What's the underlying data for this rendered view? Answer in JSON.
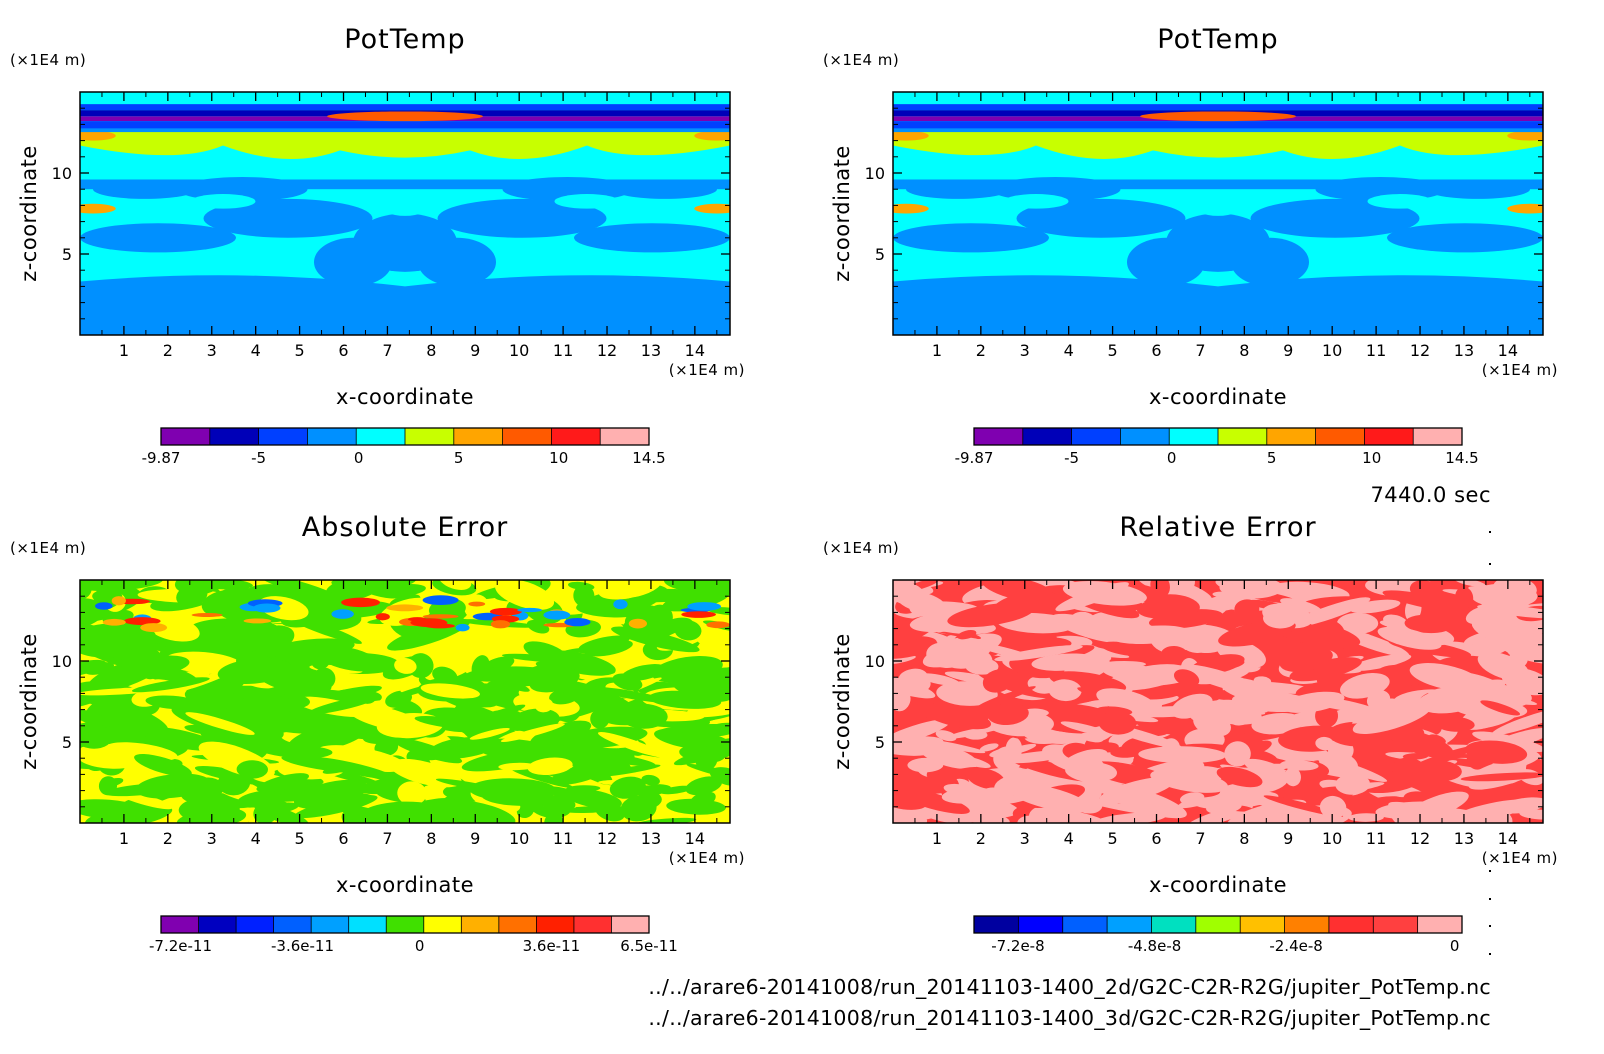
{
  "chart_data": [
    {
      "id": "pottemp-2d",
      "type": "heatmap",
      "title": "PotTemp",
      "xlabel": "x-coordinate",
      "ylabel": "z-coordinate",
      "x_unit": "(×1E4 m)",
      "y_unit": "(×1E4 m)",
      "xlim": [
        0,
        14.8
      ],
      "ylim": [
        0,
        15
      ],
      "xticks": [
        "1",
        "2",
        "3",
        "4",
        "5",
        "6",
        "7",
        "8",
        "9",
        "10",
        "11",
        "12",
        "13",
        "14"
      ],
      "yticks": [
        "5",
        "10"
      ],
      "pattern": "pottemp",
      "colorbar": {
        "colors": [
          "#7f00b0",
          "#0000b8",
          "#0040ff",
          "#0090ff",
          "#00ffff",
          "#c8ff00",
          "#ffa500",
          "#ff5a00",
          "#ff1a1a",
          "#ffb0b0"
        ],
        "range": [
          -9.87,
          14.5
        ],
        "labels": [
          {
            "text": "-9.87",
            "pos": 0
          },
          {
            "text": "-5",
            "pos": 0.2
          },
          {
            "text": "0",
            "pos": 0.405
          },
          {
            "text": "5",
            "pos": 0.61
          },
          {
            "text": "10",
            "pos": 0.815
          },
          {
            "text": "14.5",
            "pos": 1
          }
        ]
      }
    },
    {
      "id": "pottemp-3d",
      "type": "heatmap",
      "title": "PotTemp",
      "xlabel": "x-coordinate",
      "ylabel": "z-coordinate",
      "x_unit": "(×1E4 m)",
      "y_unit": "(×1E4 m)",
      "xlim": [
        0,
        14.8
      ],
      "ylim": [
        0,
        15
      ],
      "xticks": [
        "1",
        "2",
        "3",
        "4",
        "5",
        "6",
        "7",
        "8",
        "9",
        "10",
        "11",
        "12",
        "13",
        "14"
      ],
      "yticks": [
        "5",
        "10"
      ],
      "pattern": "pottemp",
      "colorbar": {
        "colors": [
          "#7f00b0",
          "#0000b8",
          "#0040ff",
          "#0090ff",
          "#00ffff",
          "#c8ff00",
          "#ffa500",
          "#ff5a00",
          "#ff1a1a",
          "#ffb0b0"
        ],
        "range": [
          -9.87,
          14.5
        ],
        "labels": [
          {
            "text": "-9.87",
            "pos": 0
          },
          {
            "text": "-5",
            "pos": 0.2
          },
          {
            "text": "0",
            "pos": 0.405
          },
          {
            "text": "5",
            "pos": 0.61
          },
          {
            "text": "10",
            "pos": 0.815
          },
          {
            "text": "14.5",
            "pos": 1
          }
        ]
      }
    },
    {
      "id": "absolute-error",
      "type": "heatmap",
      "title": "Absolute Error",
      "xlabel": "x-coordinate",
      "ylabel": "z-coordinate",
      "x_unit": "(×1E4 m)",
      "y_unit": "(×1E4 m)",
      "xlim": [
        0,
        14.8
      ],
      "ylim": [
        0,
        15
      ],
      "xticks": [
        "1",
        "2",
        "3",
        "4",
        "5",
        "6",
        "7",
        "8",
        "9",
        "10",
        "11",
        "12",
        "13",
        "14"
      ],
      "yticks": [
        "5",
        "10"
      ],
      "pattern": "abserr",
      "colorbar": {
        "colors": [
          "#8000b0",
          "#0000c0",
          "#0020ff",
          "#0060ff",
          "#00a0ff",
          "#00e0ff",
          "#40e000",
          "#ffff00",
          "#ffb000",
          "#ff7000",
          "#ff2000",
          "#ff3030",
          "#ffb0b0"
        ],
        "range": [
          -7.2e-11,
          6.5e-11
        ],
        "labels": [
          {
            "text": "-7.2e-11",
            "pos": 0.04
          },
          {
            "text": "-3.6e-11",
            "pos": 0.29
          },
          {
            "text": "0",
            "pos": 0.53
          },
          {
            "text": "3.6e-11",
            "pos": 0.8
          },
          {
            "text": "6.5e-11",
            "pos": 1
          }
        ]
      }
    },
    {
      "id": "relative-error",
      "type": "heatmap",
      "title": "Relative Error",
      "xlabel": "x-coordinate",
      "ylabel": "z-coordinate",
      "x_unit": "(×1E4 m)",
      "y_unit": "(×1E4 m)",
      "xlim": [
        0,
        14.8
      ],
      "ylim": [
        0,
        15
      ],
      "xticks": [
        "1",
        "2",
        "3",
        "4",
        "5",
        "6",
        "7",
        "8",
        "9",
        "10",
        "11",
        "12",
        "13",
        "14"
      ],
      "yticks": [
        "5",
        "10"
      ],
      "pattern": "relerr",
      "colorbar": {
        "colors": [
          "#0000a0",
          "#0000ff",
          "#0060ff",
          "#00a0ff",
          "#00e0c0",
          "#a0ff00",
          "#ffc000",
          "#ff8000",
          "#ff3030",
          "#ff4040",
          "#ffb0b0"
        ],
        "range": [
          -8.6e-08,
          0
        ],
        "labels": [
          {
            "text": "-7.2e-8",
            "pos": 0.09
          },
          {
            "text": "-4.8e-8",
            "pos": 0.37
          },
          {
            "text": "-2.4e-8",
            "pos": 0.66
          },
          {
            "text": "0",
            "pos": 0.985
          }
        ]
      }
    }
  ],
  "time_label": "7440.0 sec",
  "files": [
    "../../arare6-20141008/run_20141103-1400_2d/G2C-C2R-R2G/jupiter_PotTemp.nc",
    "../../arare6-20141008/run_20141103-1400_3d/G2C-C2R-R2G/jupiter_PotTemp.nc"
  ]
}
